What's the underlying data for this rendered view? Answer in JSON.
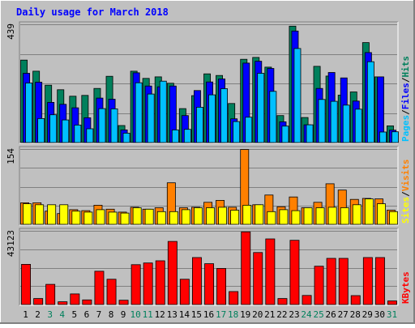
{
  "chart_data": {
    "title": "Daily usage for March 2018",
    "type": "bar",
    "categories": [
      "1",
      "2",
      "3",
      "4",
      "5",
      "6",
      "7",
      "8",
      "9",
      "10",
      "11",
      "12",
      "13",
      "14",
      "15",
      "16",
      "17",
      "18",
      "19",
      "20",
      "21",
      "22",
      "23",
      "24",
      "25",
      "26",
      "27",
      "28",
      "29",
      "30",
      "31"
    ],
    "weekend_days": [
      "3",
      "4",
      "10",
      "11",
      "17",
      "18",
      "24",
      "25",
      "31"
    ],
    "panels": [
      {
        "id": "hits_files_pages",
        "ymax": 439,
        "ymax_label": "439",
        "legend": [
          "Pages",
          "/",
          "Files",
          "/",
          "Hits"
        ],
        "series": [
          {
            "name": "Hits",
            "color": "#00805c",
            "values": [
              306,
              265,
              213,
              196,
              172,
              175,
              201,
              246,
              63,
              265,
              238,
              244,
              220,
              126,
              174,
              255,
              249,
              145,
              309,
              316,
              280,
              100,
              432,
              93,
              283,
              247,
              176,
              188,
              371,
              244,
              62
            ]
          },
          {
            "name": "Files",
            "color": "#0000ff",
            "values": [
              257,
              224,
              149,
              142,
              129,
              92,
              165,
              161,
              47,
              259,
              210,
              207,
              210,
              100,
              193,
              225,
              236,
              88,
              295,
              302,
              275,
              77,
              414,
              66,
              201,
              260,
              240,
              154,
              334,
              244,
              46
            ]
          },
          {
            "name": "Pages",
            "color": "#00c0ff",
            "values": [
              221,
              89,
              103,
              84,
              65,
              51,
              126,
              125,
              35,
              222,
              180,
              228,
              47,
              49,
              131,
              177,
              200,
              78,
              94,
              257,
              190,
              61,
              349,
              66,
              160,
              153,
              139,
              124,
              300,
              39,
              40
            ]
          }
        ]
      },
      {
        "id": "visits_sites",
        "ymax": 154,
        "ymax_label": "154",
        "legend": [
          "Sites",
          "/",
          "Visits"
        ],
        "series": [
          {
            "name": "Visits",
            "color": "#ff8000",
            "values": [
              44,
              44,
              27,
              22,
              30,
              28,
              39,
              31,
              25,
              35,
              31,
              34,
              85,
              34,
              35,
              45,
              49,
              35,
              153,
              40,
              60,
              36,
              56,
              34,
              45,
              83,
              70,
              51,
              53,
              52,
              29
            ]
          },
          {
            "name": "Sites",
            "color": "#ffff00",
            "values": [
              42,
              40,
              40,
              40,
              27,
              25,
              30,
              25,
              23,
              34,
              31,
              26,
              26,
              30,
              34,
              34,
              35,
              29,
              39,
              40,
              26,
              30,
              28,
              34,
              34,
              35,
              34,
              40,
              52,
              42,
              26
            ]
          }
        ]
      },
      {
        "id": "kbytes",
        "ymax": 43123,
        "ymax_label": "43123",
        "legend": [
          "KBytes"
        ],
        "series": [
          {
            "name": "KBytes",
            "color": "#ff0000",
            "values": [
              23500,
              3500,
              11800,
              1600,
              6200,
              2700,
              19500,
              14800,
              2500,
              23300,
              24300,
              25600,
              36900,
              14800,
              27500,
              23900,
              21100,
              7600,
              42500,
              30400,
              38400,
              3500,
              37600,
              5300,
              22400,
              27000,
              27000,
              5200,
              27500,
              27500,
              2100
            ]
          }
        ]
      }
    ],
    "colors": {
      "background": "#c0c0c0",
      "frame_light": "#ffffff",
      "frame_dark": "#808080",
      "title_text": "#0000ff",
      "gridline": "#808080",
      "weekday_label": "#000000",
      "weekend_label": "#00805c",
      "pages_legend": "#00c0ff",
      "files_legend": "#0000ff",
      "hits_legend": "#00805c",
      "sites_legend": "#ffff00",
      "visits_legend": "#ff8000",
      "kbytes_legend": "#ff0000",
      "separator_legend": "#000000"
    },
    "gridlines": true
  }
}
